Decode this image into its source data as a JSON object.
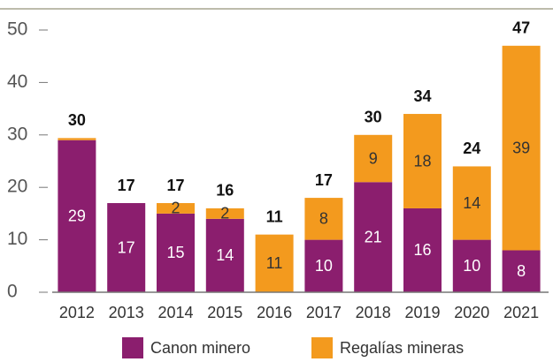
{
  "chart_data": {
    "type": "stacked_bar",
    "categories": [
      "2012",
      "2013",
      "2014",
      "2015",
      "2016",
      "2017",
      "2018",
      "2019",
      "2020",
      "2021"
    ],
    "series": [
      {
        "name": "Canon minero",
        "color": "#8b1e6e",
        "values": [
          29,
          17,
          15,
          14,
          0,
          10,
          21,
          16,
          10,
          8
        ],
        "value_labels": [
          "29",
          "17",
          "15",
          "14",
          null,
          "10",
          "21",
          "16",
          "10",
          "8"
        ]
      },
      {
        "name": "Regalías mineras",
        "color": "#f39a1e",
        "values": [
          0.4,
          0,
          2,
          2,
          11,
          8,
          9,
          18,
          14,
          39
        ],
        "value_labels": [
          null,
          null,
          "2",
          "2",
          "11",
          "8",
          "9",
          "18",
          "14",
          "39"
        ]
      }
    ],
    "totals": [
      30,
      17,
      17,
      16,
      11,
      17,
      30,
      34,
      24,
      47
    ],
    "ylim": [
      0,
      50
    ],
    "yticks": [
      0,
      10,
      20,
      30,
      40,
      50
    ],
    "legend": "bottom"
  }
}
